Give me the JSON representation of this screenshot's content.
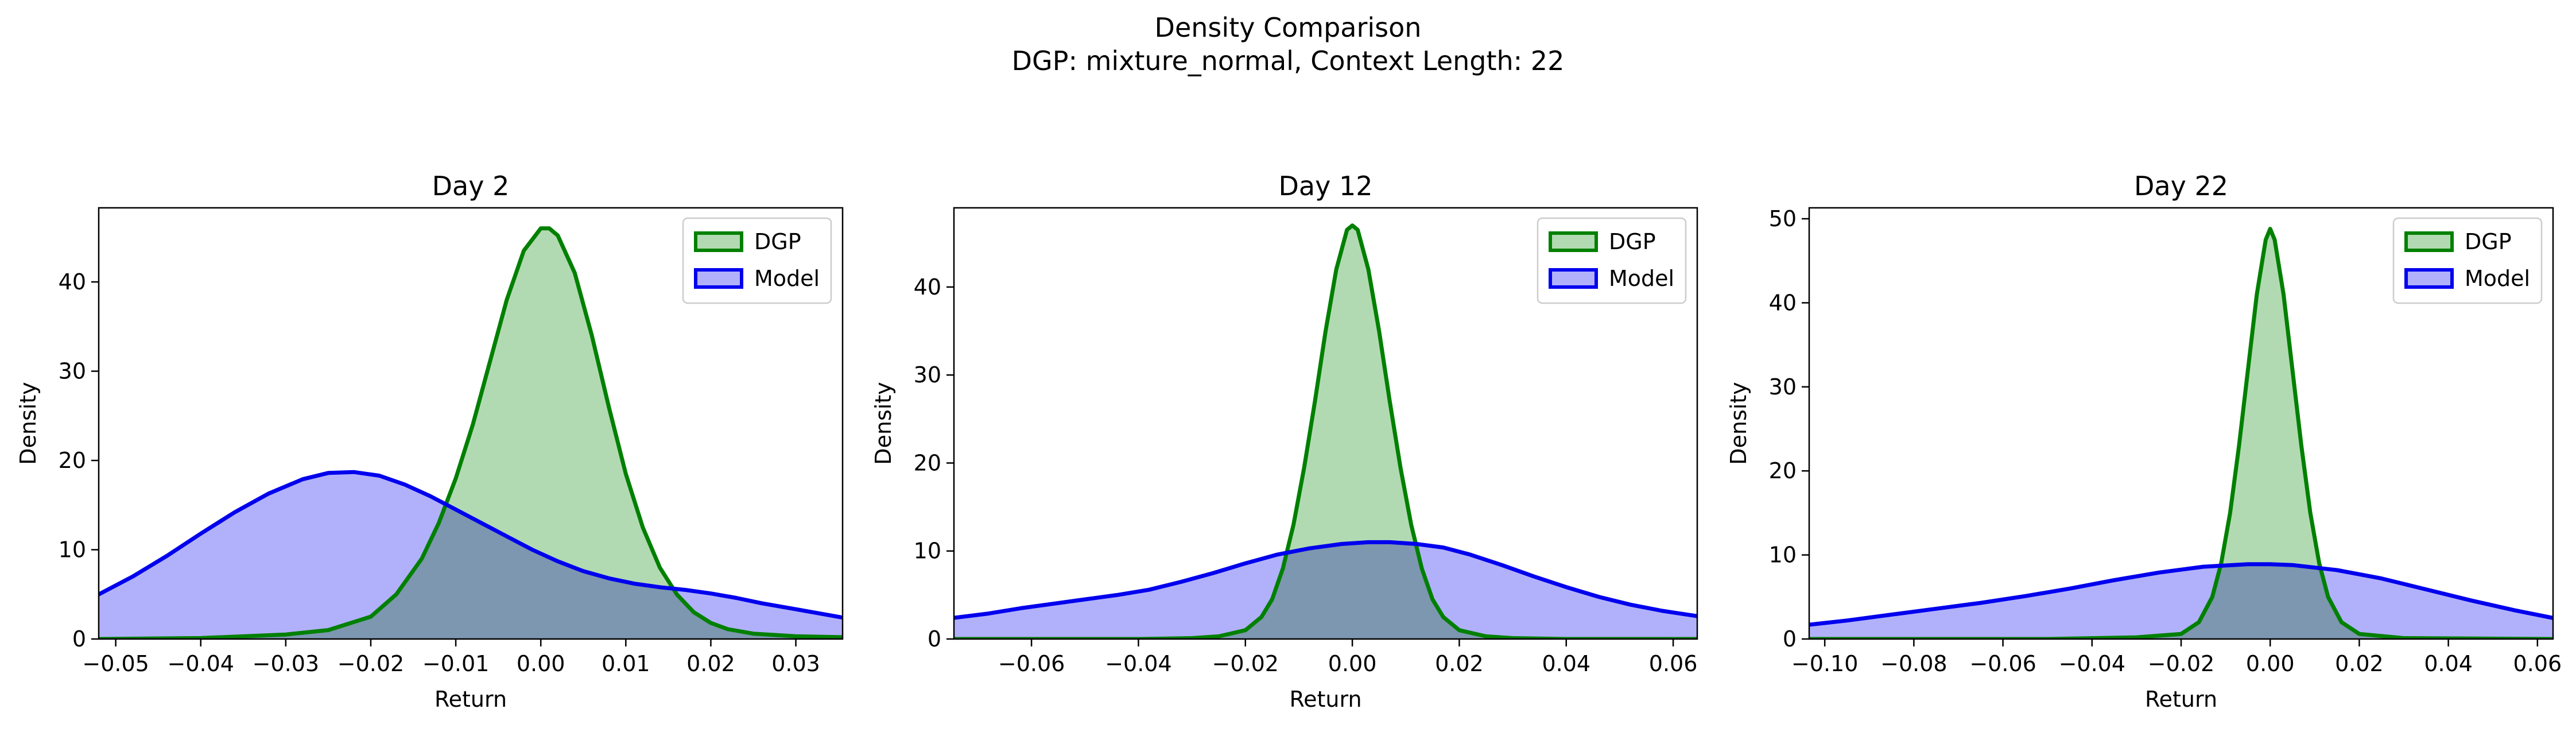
{
  "figure": {
    "title_line1": "Density Comparison",
    "title_line2": "DGP: mixture_normal, Context Length: 22"
  },
  "colors": {
    "dgp_line": "#008000",
    "dgp_fill": "#b2dab2",
    "model_line": "#0000ee",
    "model_fill": "#b1b1fb",
    "overlap_fill": "#7f9bcb"
  },
  "chart_data": [
    {
      "type": "area",
      "title": "Day 2",
      "xlabel": "Return",
      "ylabel": "Density",
      "xlim": [
        -0.052,
        0.0355
      ],
      "ylim": [
        0,
        48.3
      ],
      "xticks": [
        -0.05,
        -0.04,
        -0.03,
        -0.02,
        -0.01,
        0.0,
        0.01,
        0.02,
        0.03
      ],
      "xtick_labels": [
        "−0.05",
        "−0.04",
        "−0.03",
        "−0.02",
        "−0.01",
        "0.00",
        "0.01",
        "0.02",
        "0.03"
      ],
      "yticks": [
        0,
        10,
        20,
        30,
        40
      ],
      "ytick_labels": [
        "0",
        "10",
        "20",
        "30",
        "40"
      ],
      "legend": [
        "DGP",
        "Model"
      ],
      "legend_position": "top-right",
      "series": [
        {
          "name": "DGP",
          "x": [
            -0.052,
            -0.04,
            -0.03,
            -0.025,
            -0.02,
            -0.017,
            -0.014,
            -0.012,
            -0.01,
            -0.008,
            -0.006,
            -0.004,
            -0.002,
            0.0,
            0.001,
            0.002,
            0.004,
            0.006,
            0.008,
            0.01,
            0.012,
            0.014,
            0.016,
            0.018,
            0.02,
            0.022,
            0.025,
            0.03,
            0.0355
          ],
          "y": [
            0.0,
            0.1,
            0.5,
            1.0,
            2.5,
            5.0,
            9.0,
            13.0,
            18.0,
            24.0,
            31.0,
            38.0,
            43.5,
            46.0,
            46.0,
            45.2,
            41.0,
            34.0,
            26.0,
            18.5,
            12.5,
            8.0,
            5.0,
            3.0,
            1.8,
            1.1,
            0.6,
            0.3,
            0.2
          ]
        },
        {
          "name": "Model",
          "x": [
            -0.052,
            -0.048,
            -0.044,
            -0.04,
            -0.036,
            -0.032,
            -0.028,
            -0.025,
            -0.022,
            -0.019,
            -0.016,
            -0.013,
            -0.01,
            -0.007,
            -0.004,
            -0.001,
            0.002,
            0.005,
            0.008,
            0.011,
            0.014,
            0.017,
            0.02,
            0.023,
            0.026,
            0.029,
            0.032,
            0.0355
          ],
          "y": [
            5.0,
            7.0,
            9.3,
            11.8,
            14.2,
            16.3,
            17.9,
            18.6,
            18.7,
            18.3,
            17.3,
            16.0,
            14.5,
            13.0,
            11.5,
            10.0,
            8.7,
            7.6,
            6.8,
            6.2,
            5.8,
            5.5,
            5.1,
            4.6,
            4.0,
            3.5,
            3.0,
            2.4
          ]
        }
      ]
    },
    {
      "type": "area",
      "title": "Day 12",
      "xlabel": "Return",
      "ylabel": "Density",
      "xlim": [
        -0.0745,
        0.0645
      ],
      "ylim": [
        0,
        49.0
      ],
      "xticks": [
        -0.06,
        -0.04,
        -0.02,
        0.0,
        0.02,
        0.04,
        0.06
      ],
      "xtick_labels": [
        "−0.06",
        "−0.04",
        "−0.02",
        "0.00",
        "0.02",
        "0.04",
        "0.06"
      ],
      "yticks": [
        0,
        10,
        20,
        30,
        40
      ],
      "ytick_labels": [
        "0",
        "10",
        "20",
        "30",
        "40"
      ],
      "legend": [
        "DGP",
        "Model"
      ],
      "legend_position": "top-right",
      "series": [
        {
          "name": "DGP",
          "x": [
            -0.0745,
            -0.04,
            -0.03,
            -0.025,
            -0.02,
            -0.017,
            -0.015,
            -0.013,
            -0.011,
            -0.009,
            -0.007,
            -0.005,
            -0.003,
            -0.001,
            0.0,
            0.001,
            0.003,
            0.005,
            0.007,
            0.009,
            0.011,
            0.013,
            0.015,
            0.017,
            0.02,
            0.025,
            0.03,
            0.04,
            0.0645
          ],
          "y": [
            0.0,
            0.0,
            0.1,
            0.3,
            1.0,
            2.5,
            4.5,
            8.0,
            13.0,
            19.5,
            27.0,
            35.0,
            42.0,
            46.5,
            47.0,
            46.5,
            42.0,
            35.0,
            27.0,
            19.5,
            13.0,
            8.0,
            4.5,
            2.5,
            1.0,
            0.3,
            0.1,
            0.0,
            0.0
          ]
        },
        {
          "name": "Model",
          "x": [
            -0.0745,
            -0.068,
            -0.062,
            -0.056,
            -0.05,
            -0.044,
            -0.038,
            -0.032,
            -0.026,
            -0.02,
            -0.014,
            -0.008,
            -0.002,
            0.003,
            0.007,
            0.012,
            0.017,
            0.022,
            0.028,
            0.034,
            0.04,
            0.046,
            0.052,
            0.058,
            0.0645
          ],
          "y": [
            2.4,
            2.9,
            3.5,
            4.0,
            4.5,
            5.0,
            5.6,
            6.5,
            7.5,
            8.6,
            9.6,
            10.3,
            10.8,
            11.0,
            11.0,
            10.8,
            10.4,
            9.6,
            8.4,
            7.1,
            5.9,
            4.8,
            3.9,
            3.2,
            2.6
          ]
        }
      ]
    },
    {
      "type": "area",
      "title": "Day 22",
      "xlabel": "Return",
      "ylabel": "Density",
      "xlim": [
        -0.1035,
        0.0635
      ],
      "ylim": [
        0,
        51.3
      ],
      "xticks": [
        -0.1,
        -0.08,
        -0.06,
        -0.04,
        -0.02,
        0.0,
        0.02,
        0.04,
        0.06
      ],
      "xtick_labels": [
        "−0.10",
        "−0.08",
        "−0.06",
        "−0.04",
        "−0.02",
        "0.00",
        "0.02",
        "0.04",
        "0.06"
      ],
      "yticks": [
        0,
        10,
        20,
        30,
        40,
        50
      ],
      "ytick_labels": [
        "0",
        "10",
        "20",
        "30",
        "40",
        "50"
      ],
      "legend": [
        "DGP",
        "Model"
      ],
      "legend_position": "top-right",
      "series": [
        {
          "name": "DGP",
          "x": [
            -0.1035,
            -0.05,
            -0.03,
            -0.02,
            -0.016,
            -0.013,
            -0.011,
            -0.009,
            -0.007,
            -0.005,
            -0.003,
            -0.001,
            0.0,
            0.001,
            0.003,
            0.005,
            0.007,
            0.009,
            0.011,
            0.013,
            0.016,
            0.02,
            0.03,
            0.0635
          ],
          "y": [
            0.0,
            0.0,
            0.2,
            0.6,
            2.0,
            5.0,
            9.0,
            15.0,
            23.0,
            32.0,
            41.0,
            47.5,
            48.8,
            47.5,
            41.0,
            32.0,
            23.0,
            15.0,
            9.0,
            5.0,
            2.0,
            0.6,
            0.1,
            0.0
          ]
        },
        {
          "name": "Model",
          "x": [
            -0.1035,
            -0.095,
            -0.085,
            -0.075,
            -0.065,
            -0.055,
            -0.045,
            -0.035,
            -0.025,
            -0.015,
            -0.005,
            0.0,
            0.005,
            0.015,
            0.025,
            0.035,
            0.045,
            0.055,
            0.0635
          ],
          "y": [
            1.7,
            2.2,
            2.9,
            3.6,
            4.3,
            5.1,
            6.0,
            7.0,
            7.9,
            8.6,
            8.9,
            8.9,
            8.8,
            8.2,
            7.2,
            5.9,
            4.6,
            3.4,
            2.5
          ]
        }
      ]
    }
  ]
}
